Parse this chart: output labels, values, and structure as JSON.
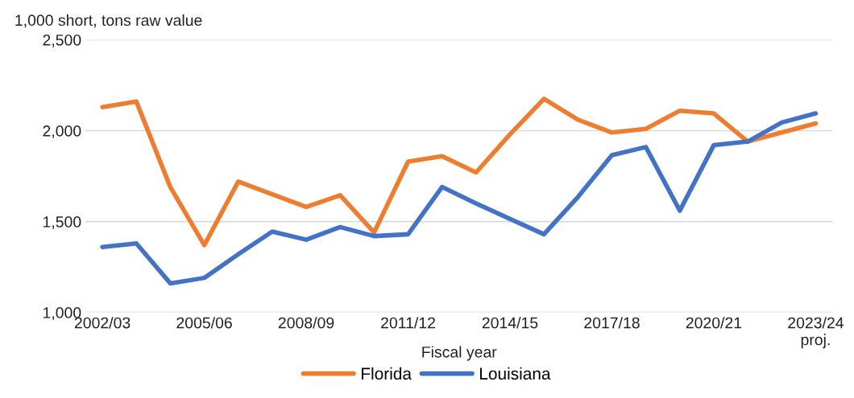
{
  "chart_data": {
    "type": "line",
    "ylabel": "1,000 short, tons raw value",
    "xlabel": "Fiscal year",
    "categories": [
      "2002/03",
      null,
      null,
      "2005/06",
      null,
      null,
      "2008/09",
      null,
      null,
      "2011/12",
      null,
      null,
      "2014/15",
      null,
      null,
      "2017/18",
      null,
      null,
      "2020/21",
      null,
      null,
      "2023/24\nproj."
    ],
    "series": [
      {
        "name": "Florida",
        "color": "#ed7d31",
        "values": [
          2130,
          2160,
          1690,
          1370,
          1720,
          1650,
          1580,
          1645,
          1440,
          1830,
          1860,
          1770,
          1980,
          2175,
          2060,
          1990,
          2010,
          2110,
          2095,
          1940,
          1990,
          2040
        ]
      },
      {
        "name": "Louisiana",
        "color": "#4472c4",
        "values": [
          1360,
          1380,
          1160,
          1190,
          1320,
          1445,
          1400,
          1470,
          1420,
          1430,
          1690,
          1600,
          1515,
          1430,
          1635,
          1865,
          1910,
          1560,
          1920,
          1940,
          2045,
          2095
        ]
      }
    ],
    "ylim": [
      1000,
      2500
    ],
    "yticks": [
      {
        "value": 1000,
        "label": "1,000"
      },
      {
        "value": 1500,
        "label": "1,500"
      },
      {
        "value": 2000,
        "label": "2,000"
      },
      {
        "value": 2500,
        "label": "2,500"
      }
    ],
    "grid": "y",
    "legend": "bottom",
    "marker": "none",
    "line_style": "solid"
  }
}
